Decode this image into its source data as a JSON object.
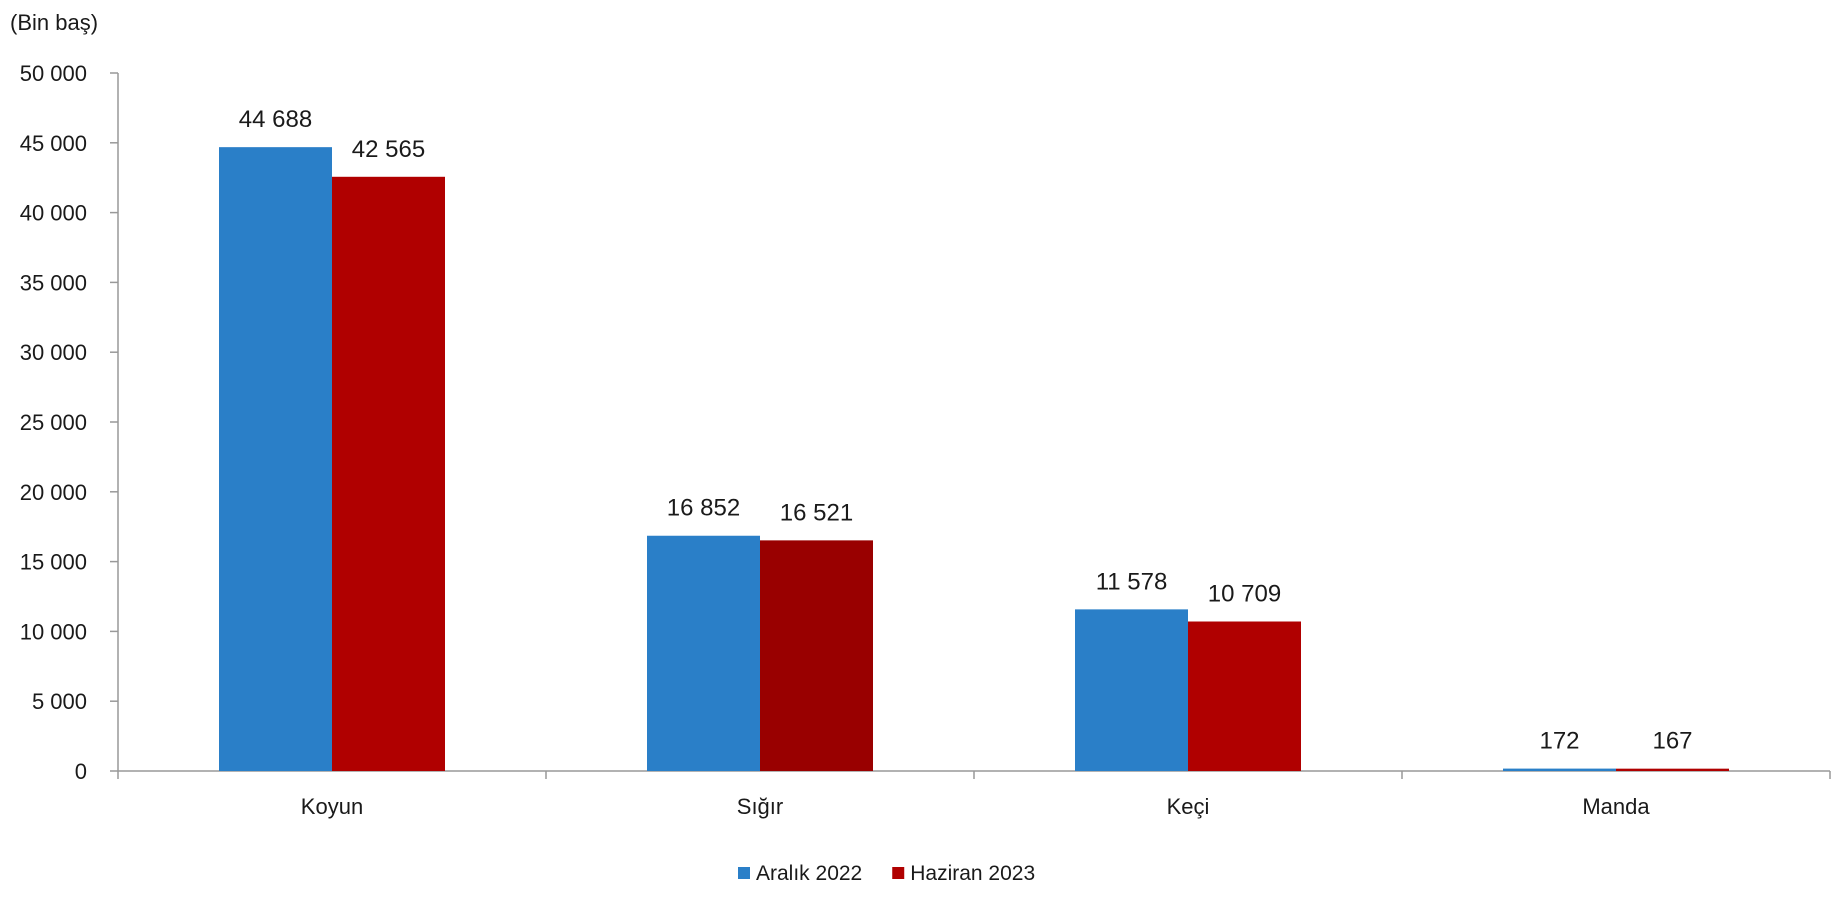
{
  "chart_data": {
    "type": "bar",
    "unit_label": "(Bin baş)",
    "categories": [
      "Koyun",
      "Sığır",
      "Keçi",
      "Manda"
    ],
    "series": [
      {
        "name": "Aralık 2022",
        "color": "#2a7fc8",
        "values": [
          44688,
          16852,
          11578,
          172
        ],
        "labels": [
          "44 688",
          "16 852",
          "11 578",
          "172"
        ]
      },
      {
        "name": "Haziran 2023",
        "color": "#b00000",
        "values": [
          42565,
          16521,
          10709,
          167
        ],
        "labels": [
          "42 565",
          "16 521",
          "10 709",
          "167"
        ]
      }
    ],
    "ylim": [
      0,
      50000
    ],
    "yticks": [
      0,
      5000,
      10000,
      15000,
      20000,
      25000,
      30000,
      35000,
      40000,
      45000,
      50000
    ],
    "ytick_labels": [
      "0",
      "5 000",
      "10 000",
      "15 000",
      "20 000",
      "25 000",
      "30 000",
      "35 000",
      "40 000",
      "45 000",
      "50 000"
    ],
    "grid": false,
    "legend_position": "bottom-center"
  }
}
